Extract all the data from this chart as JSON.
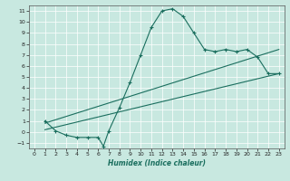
{
  "title": "",
  "xlabel": "Humidex (Indice chaleur)",
  "xlim": [
    -0.5,
    23.5
  ],
  "ylim": [
    -1.5,
    11.5
  ],
  "xticks": [
    0,
    1,
    2,
    3,
    4,
    5,
    6,
    7,
    8,
    9,
    10,
    11,
    12,
    13,
    14,
    15,
    16,
    17,
    18,
    19,
    20,
    21,
    22,
    23
  ],
  "yticks": [
    -1,
    0,
    1,
    2,
    3,
    4,
    5,
    6,
    7,
    8,
    9,
    10,
    11
  ],
  "bg_color": "#c8e8e0",
  "line_color": "#1a6e5e",
  "grid_color": "#ffffff",
  "curve1_x": [
    1,
    2,
    3,
    4,
    5,
    6,
    6.5,
    7,
    8,
    9,
    10,
    11,
    12,
    13,
    14,
    15,
    16,
    17,
    18,
    19,
    20,
    21,
    22,
    23
  ],
  "curve1_y": [
    1.0,
    0.1,
    -0.3,
    -0.5,
    -0.5,
    -0.5,
    -1.3,
    0.1,
    2.2,
    4.5,
    7.0,
    9.5,
    11.0,
    11.2,
    10.5,
    9.0,
    7.5,
    7.3,
    7.5,
    7.3,
    7.5,
    6.8,
    5.3,
    5.3
  ],
  "line2_x": [
    1,
    23
  ],
  "line2_y": [
    0.8,
    7.5
  ],
  "line3_x": [
    1,
    23
  ],
  "line3_y": [
    0.2,
    5.3
  ]
}
